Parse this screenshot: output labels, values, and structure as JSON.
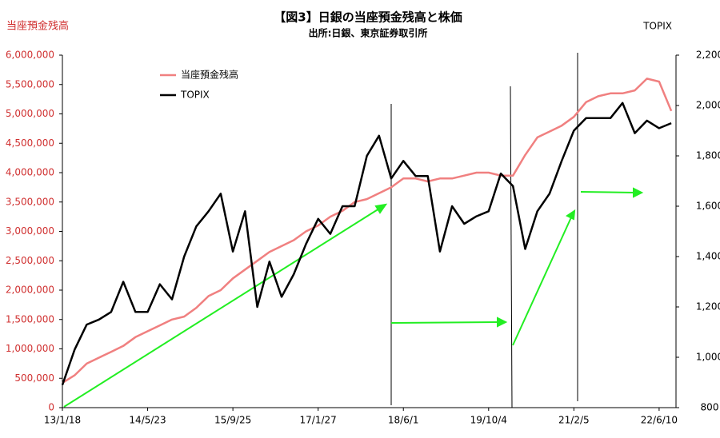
{
  "chart_data": {
    "type": "line",
    "title": "【図3】日銀の当座預金残高と株価",
    "subtitle": "出所:日銀、東京証券取引所",
    "ylabel": "当座預金残高",
    "y2label": "TOPIX",
    "legend": "upper left",
    "x": [
      "13/1/18",
      "13/3/29",
      "13/6/7",
      "13/8/16",
      "13/10/25",
      "14/1/3",
      "14/3/14",
      "14/5/23",
      "14/8/1",
      "14/10/10",
      "14/12/19",
      "15/2/27",
      "15/5/8",
      "15/7/17",
      "15/9/25",
      "15/12/4",
      "16/2/12",
      "16/4/22",
      "16/7/1",
      "16/9/9",
      "16/11/18",
      "17/1/27",
      "17/4/7",
      "17/6/16",
      "17/8/25",
      "17/11/3",
      "18/1/12",
      "18/3/23",
      "18/6/1",
      "18/8/10",
      "18/10/19",
      "18/12/28",
      "19/3/8",
      "19/5/17",
      "19/7/26",
      "19/10/4",
      "19/12/13",
      "20/2/21",
      "20/5/1",
      "20/7/10",
      "20/9/18",
      "20/11/27",
      "21/2/5",
      "21/4/16",
      "21/6/25",
      "21/9/3",
      "21/11/12",
      "22/1/21",
      "22/4/1",
      "22/6/10",
      "22/8/19"
    ],
    "xlim": [
      "13/1/18",
      "22/9/15"
    ],
    "xticks": [
      "13/1/18",
      "14/5/23",
      "15/9/25",
      "17/1/27",
      "18/6/1",
      "19/10/4",
      "21/2/5",
      "22/6/10"
    ],
    "series": [
      {
        "name": "当座預金残高",
        "color": "#f08080",
        "axis": "y",
        "values": [
          420000,
          550000,
          750000,
          850000,
          950000,
          1050000,
          1200000,
          1300000,
          1400000,
          1500000,
          1550000,
          1700000,
          1900000,
          2000000,
          2200000,
          2350000,
          2500000,
          2650000,
          2750000,
          2850000,
          3000000,
          3100000,
          3250000,
          3350000,
          3500000,
          3550000,
          3650000,
          3750000,
          3900000,
          3900000,
          3850000,
          3900000,
          3900000,
          3950000,
          4000000,
          4000000,
          3950000,
          3950000,
          4300000,
          4600000,
          4700000,
          4800000,
          4950000,
          5200000,
          5300000,
          5350000,
          5350000,
          5400000,
          5600000,
          5550000,
          5050000
        ]
      },
      {
        "name": "TOPIX",
        "color": "#000000",
        "axis": "y2",
        "values": [
          890,
          1030,
          1130,
          1150,
          1180,
          1300,
          1180,
          1180,
          1290,
          1230,
          1400,
          1520,
          1580,
          1650,
          1420,
          1580,
          1200,
          1380,
          1240,
          1330,
          1450,
          1550,
          1490,
          1600,
          1600,
          1800,
          1880,
          1710,
          1780,
          1720,
          1720,
          1420,
          1600,
          1530,
          1560,
          1580,
          1730,
          1680,
          1430,
          1580,
          1650,
          1780,
          1900,
          1950,
          1950,
          1950,
          2010,
          1890,
          1940,
          1910,
          1930
        ]
      }
    ],
    "ylim": [
      0,
      6000000
    ],
    "yticks": [
      0,
      {
        "value": 500000,
        "label": "500,000"
      },
      {
        "value": 1000000,
        "label": "1,000,000"
      },
      {
        "value": 1500000,
        "label": "1,500,000"
      },
      {
        "value": 2000000,
        "label": "2,000,000"
      },
      {
        "value": 2500000,
        "label": "2,500,000"
      },
      {
        "value": 3000000,
        "label": "3,000,000"
      },
      {
        "value": 3500000,
        "label": "3,500,000"
      },
      {
        "value": 4000000,
        "label": "4,000,000"
      },
      {
        "value": 4500000,
        "label": "4,500,000"
      },
      {
        "value": 5000000,
        "label": "5,000,000"
      },
      {
        "value": 5500000,
        "label": "5,500,000"
      },
      {
        "value": 6000000,
        "label": "6,000,000"
      }
    ],
    "y2lim": [
      800,
      2200
    ],
    "y2ticks": [
      800,
      {
        "value": 1000,
        "label": "1,000"
      },
      {
        "value": 1200,
        "label": "1,200"
      },
      {
        "value": 1400,
        "label": "1,400"
      },
      {
        "value": 1600,
        "label": "1,600"
      },
      {
        "value": 1800,
        "label": "1,800"
      },
      {
        "value": 2000,
        "label": "2,000"
      },
      {
        "value": 2200,
        "label": "2,200"
      }
    ]
  }
}
